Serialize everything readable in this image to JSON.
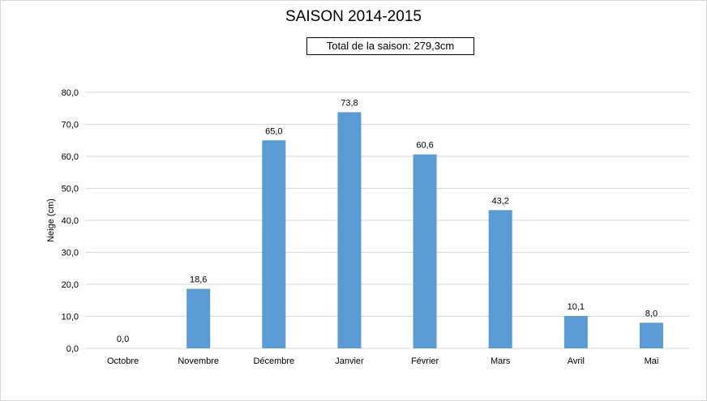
{
  "chart_data": {
    "type": "bar",
    "title": "SAISON 2014-2015",
    "subtitle": "Total de la saison: 279,3cm",
    "ylabel": "Neige (cm)",
    "xlabel": "",
    "ylim": [
      0,
      80
    ],
    "ytick_step": 10,
    "ytick_labels": [
      "0,0",
      "10,0",
      "20,0",
      "30,0",
      "40,0",
      "50,0",
      "60,0",
      "70,0",
      "80,0"
    ],
    "categories": [
      "Octobre",
      "Novembre",
      "Décembre",
      "Janvier",
      "Février",
      "Mars",
      "Avril",
      "Mai"
    ],
    "values": [
      0.0,
      18.6,
      65.0,
      73.8,
      60.6,
      43.2,
      10.1,
      8.0
    ],
    "value_labels": [
      "0,0",
      "18,6",
      "65,0",
      "73,8",
      "60,6",
      "43,2",
      "10,1",
      "8,0"
    ],
    "bar_color": "#5b9bd5",
    "gridline_color": "#d9d9d9",
    "grid": true,
    "legend": "none"
  }
}
